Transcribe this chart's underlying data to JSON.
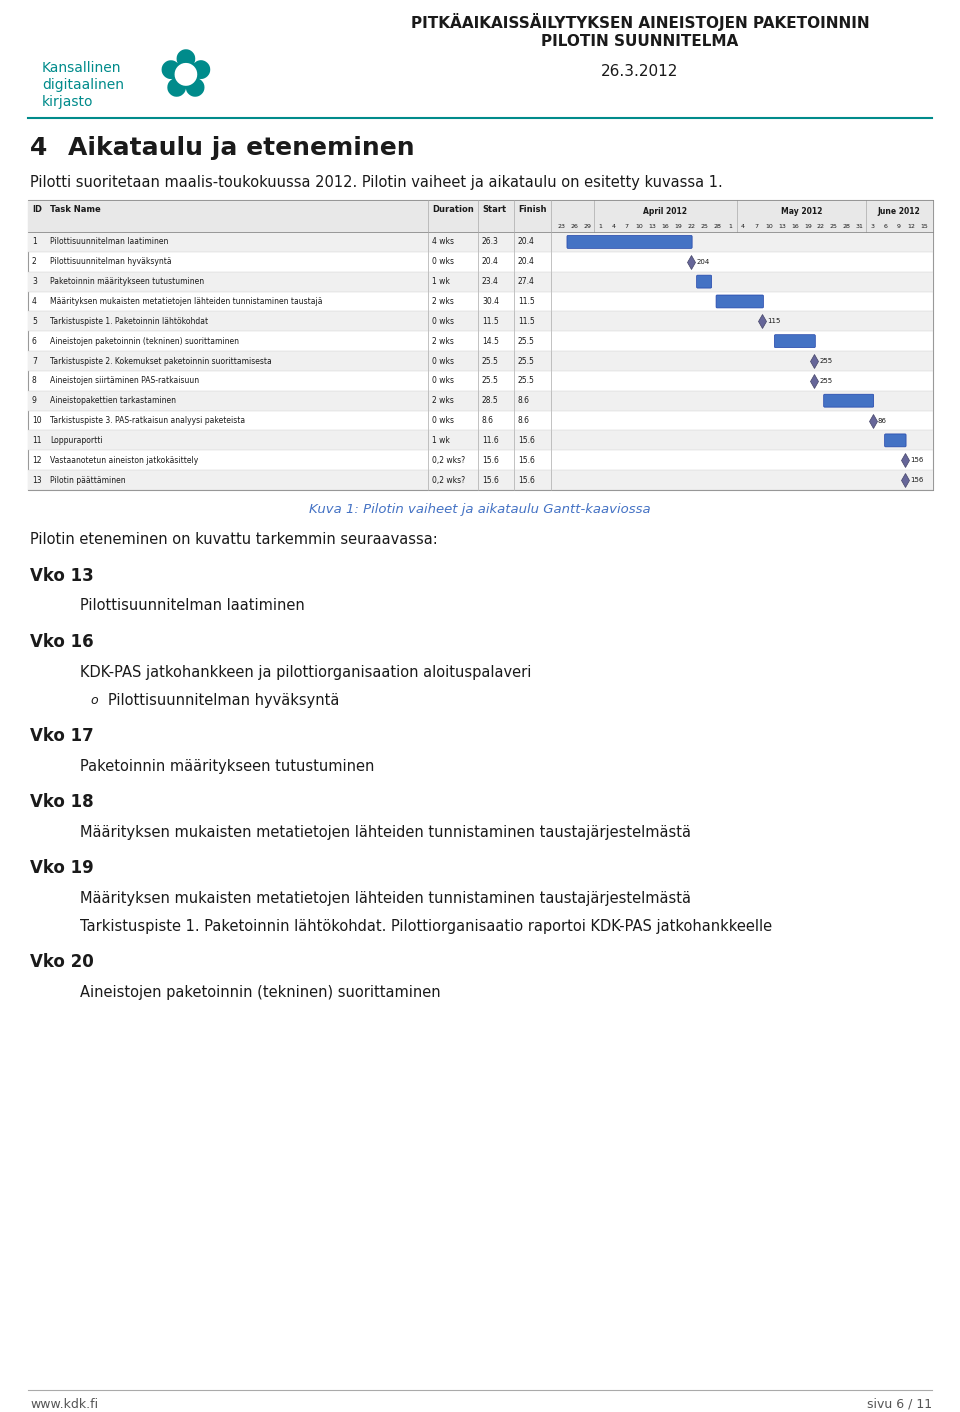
{
  "header_title_line1": "PITKÄAIKAISSÄILYTYKSEN AINEISTOJEN PAKETOINNIN",
  "header_title_line2": "PILOTIN SUUNNITELMA",
  "header_date": "26.3.2012",
  "logo_text_line1": "Kansallinen",
  "logo_text_line2": "digitaalinen",
  "logo_text_line3": "kirjasto",
  "section_number": "4",
  "section_title": "Aikataulu ja eteneminen",
  "intro_text": "Pilotti suoritetaan maalis-toukokuussa 2012. Pilotin vaiheet ja aikataulu on esitetty kuvassa 1.",
  "gantt_caption": "Kuva 1: Pilotin vaiheet ja aikataulu Gantt-kaaviossa",
  "gantt_caption_color": "#4472C4",
  "progress_intro": "Pilotin eteneminen on kuvattu tarkemmin seuraavassa:",
  "weeks": [
    {
      "label": "Vko 13",
      "items": [
        {
          "indent": 1,
          "text": "Pilottisuunnitelman laatiminen",
          "bullet": false
        }
      ]
    },
    {
      "label": "Vko 16",
      "items": [
        {
          "indent": 1,
          "text": "KDK-PAS jatkohankkeen ja pilottiorganisaation aloituspalaveri",
          "bullet": false
        },
        {
          "indent": 2,
          "text": "Pilottisuunnitelman hyväksyntä",
          "bullet": true
        }
      ]
    },
    {
      "label": "Vko 17",
      "items": [
        {
          "indent": 1,
          "text": "Paketoinnin määritykseen tutustuminen",
          "bullet": false
        }
      ]
    },
    {
      "label": "Vko 18",
      "items": [
        {
          "indent": 1,
          "text": "Määrityksen mukaisten metatietojen lähteiden tunnistaminen taustajärjestelmästä",
          "bullet": false
        }
      ]
    },
    {
      "label": "Vko 19",
      "items": [
        {
          "indent": 1,
          "text": "Määrityksen mukaisten metatietojen lähteiden tunnistaminen taustajärjestelmästä",
          "bullet": false
        },
        {
          "indent": 1,
          "text": "Tarkistuspiste 1. Paketoinnin lähtökohdat. Pilottiorganisaatio raportoi KDK-PAS jatkohankkeelle",
          "bullet": false
        }
      ]
    },
    {
      "label": "Vko 20",
      "items": [
        {
          "indent": 1,
          "text": "Aineistojen paketoinnin (tekninen) suorittaminen",
          "bullet": false
        }
      ]
    }
  ],
  "footer_left": "www.kdk.fi",
  "footer_right": "sivu 6 / 11",
  "gantt_tasks": [
    {
      "id": 1,
      "name": "Pilottisuunnitelman laatiminen",
      "duration": "4 wks",
      "start": "26.3",
      "finish": "20.4",
      "milestone": false
    },
    {
      "id": 2,
      "name": "Pilottisuunnitelman hyväksyntä",
      "duration": "0 wks",
      "start": "20.4",
      "finish": "20.4",
      "milestone": true
    },
    {
      "id": 3,
      "name": "Paketoinnin määritykseen tutustuminen",
      "duration": "1 wk",
      "start": "23.4",
      "finish": "27.4",
      "milestone": false
    },
    {
      "id": 4,
      "name": "Määrityksen mukaisten metatietojen lähteiden tunnistaminen taustajä",
      "duration": "2 wks",
      "start": "30.4",
      "finish": "11.5",
      "milestone": false
    },
    {
      "id": 5,
      "name": "Tarkistuspiste 1. Paketoinnin lähtökohdat",
      "duration": "0 wks",
      "start": "11.5",
      "finish": "11.5",
      "milestone": true
    },
    {
      "id": 6,
      "name": "Aineistojen paketoinnin (tekninen) suorittaminen",
      "duration": "2 wks",
      "start": "14.5",
      "finish": "25.5",
      "milestone": false
    },
    {
      "id": 7,
      "name": "Tarkistuspiste 2. Kokemukset paketoinnin suorittamisesta",
      "duration": "0 wks",
      "start": "25.5",
      "finish": "25.5",
      "milestone": true
    },
    {
      "id": 8,
      "name": "Aineistojen siirtäminen PAS-ratkaisuun",
      "duration": "0 wks",
      "start": "25.5",
      "finish": "25.5",
      "milestone": true
    },
    {
      "id": 9,
      "name": "Aineistopakettien tarkastaminen",
      "duration": "2 wks",
      "start": "28.5",
      "finish": "8.6",
      "milestone": false
    },
    {
      "id": 10,
      "name": "Tarkistuspiste 3. PAS-ratkaisun analyysi paketeista",
      "duration": "0 wks",
      "start": "8.6",
      "finish": "8.6",
      "milestone": true
    },
    {
      "id": 11,
      "name": "Loppuraportti",
      "duration": "1 wk",
      "start": "11.6",
      "finish": "15.6",
      "milestone": false
    },
    {
      "id": 12,
      "name": "Vastaanotetun aineiston jatkokäsittely",
      "duration": "0,2 wks?",
      "start": "15.6",
      "finish": "15.6",
      "milestone": true
    },
    {
      "id": 13,
      "name": "Pilotin päättäminen",
      "duration": "0,2 wks?",
      "start": "15.6",
      "finish": "15.6",
      "milestone": true
    }
  ],
  "date_ticks": [
    "23",
    "26",
    "29",
    "1",
    "4",
    "7",
    "10",
    "13",
    "16",
    "19",
    "22",
    "25",
    "28",
    "1",
    "4",
    "7",
    "10",
    "13",
    "16",
    "19",
    "22",
    "25",
    "28",
    "31",
    "3",
    "6",
    "9",
    "12",
    "15"
  ],
  "teal_color": "#008B8B",
  "bar_color": "#4472C4",
  "milestone_color": "#666699",
  "header_line_color": "#4472C4",
  "bg_color": "#ffffff",
  "text_color": "#000000",
  "gantt_bg": "#f5f5f5",
  "gantt_header_bg": "#e8e8e8"
}
